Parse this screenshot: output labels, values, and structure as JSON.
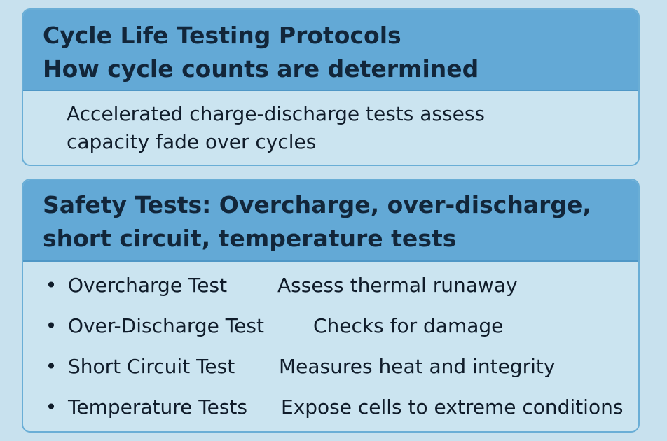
{
  "cycle_card": {
    "title_line1": "Cycle Life Testing Protocols",
    "title_line2": "How cycle counts are determined",
    "body_line1": "Accelerated charge-discharge tests assess",
    "body_line2": "capacity fade over cycles"
  },
  "safety_card": {
    "title_line1": "Safety Tests: Overcharge, over-discharge,",
    "title_line2": "short circuit, temperature tests",
    "items": [
      {
        "term": "Overcharge Test",
        "desc": "Assess thermal runaway"
      },
      {
        "term": "Over-Discharge Test",
        "desc": "Checks for damage"
      },
      {
        "term": "Short Circuit Test",
        "desc": "Measures heat and integrity"
      },
      {
        "term": "Temperature Tests",
        "desc": "Expose cells to extreme conditions"
      }
    ]
  },
  "bullet_glyph": "•"
}
